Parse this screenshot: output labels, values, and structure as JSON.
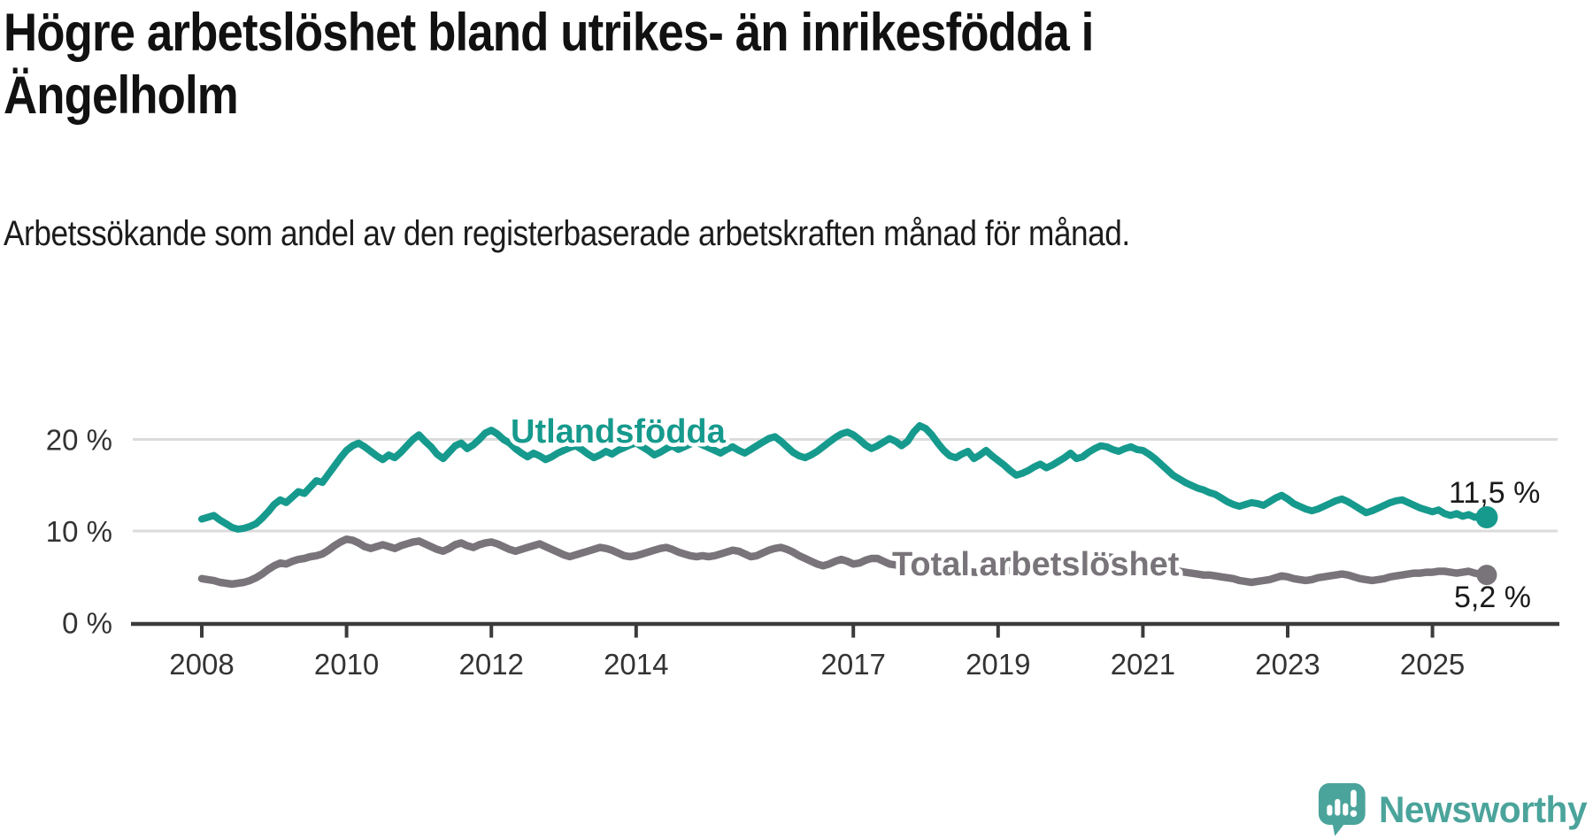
{
  "title": "Högre arbetslöshet bland utrikes- än inrikesfödda i Ängelholm",
  "subtitle": "Arbetssökande som andel av den registerbaserade arbetskraften månad för månad.",
  "branding": {
    "logo_text": "Newsworthy",
    "logo_color": "#4ba49b"
  },
  "colors": {
    "accent_teal": "#169a8d",
    "series_gray": "#787479",
    "axis": "#3b3b3b",
    "tick_text": "#333333",
    "gridline": "#dbdbdb",
    "annotation_text": "#1a1a1a"
  },
  "chart_data": {
    "type": "line",
    "unit": "%",
    "x_start": "2008-01",
    "x_end": "2025-10",
    "points_per_year": 12,
    "grid": "horizontal",
    "legend_position": "inline-labels",
    "ylim": [
      0,
      23
    ],
    "x_ticks": [
      2008,
      2010,
      2012,
      2014,
      2017,
      2019,
      2021,
      2023,
      2025
    ],
    "y_ticks": [
      {
        "value": 0,
        "label": "0 %"
      },
      {
        "value": 10,
        "label": "10 %"
      },
      {
        "value": 20,
        "label": "20 %"
      }
    ],
    "series": [
      {
        "name": "Total arbetslöshet",
        "color": "#787479",
        "end_label": "5,2 %",
        "end_value": 5.2,
        "values": [
          4.8,
          4.7,
          4.6,
          4.4,
          4.3,
          4.2,
          4.3,
          4.4,
          4.6,
          4.9,
          5.3,
          5.8,
          6.2,
          6.5,
          6.4,
          6.7,
          6.9,
          7.0,
          7.2,
          7.3,
          7.5,
          7.9,
          8.4,
          8.8,
          9.1,
          9.0,
          8.7,
          8.3,
          8.1,
          8.3,
          8.5,
          8.3,
          8.1,
          8.4,
          8.6,
          8.8,
          8.9,
          8.6,
          8.3,
          8.0,
          7.8,
          8.1,
          8.5,
          8.7,
          8.4,
          8.2,
          8.5,
          8.7,
          8.8,
          8.6,
          8.3,
          8.0,
          7.8,
          8.0,
          8.2,
          8.4,
          8.6,
          8.3,
          8.0,
          7.7,
          7.4,
          7.2,
          7.4,
          7.6,
          7.8,
          8.0,
          8.2,
          8.1,
          7.9,
          7.6,
          7.3,
          7.2,
          7.3,
          7.5,
          7.7,
          7.9,
          8.1,
          8.2,
          8.0,
          7.7,
          7.5,
          7.3,
          7.2,
          7.3,
          7.2,
          7.3,
          7.5,
          7.7,
          7.9,
          7.8,
          7.5,
          7.2,
          7.3,
          7.6,
          7.9,
          8.1,
          8.2,
          8.0,
          7.7,
          7.3,
          7.0,
          6.7,
          6.4,
          6.2,
          6.4,
          6.7,
          6.9,
          6.7,
          6.4,
          6.5,
          6.8,
          7.0,
          7.0,
          6.7,
          6.4,
          6.3,
          6.2,
          6.2,
          6.1,
          6.1,
          6.0,
          5.9,
          5.8,
          5.8,
          5.7,
          5.7,
          5.6,
          5.6,
          5.5,
          5.5,
          5.5,
          5.6,
          5.6,
          5.6,
          5.7,
          5.7,
          5.8,
          5.8,
          5.9,
          5.9,
          6.0,
          6.0,
          6.1,
          6.2,
          6.3,
          6.4,
          6.6,
          6.9,
          7.1,
          7.2,
          7.2,
          7.1,
          7.0,
          6.9,
          6.8,
          6.7,
          6.6,
          6.4,
          6.2,
          6.0,
          5.9,
          5.7,
          5.6,
          5.5,
          5.4,
          5.3,
          5.2,
          5.2,
          5.1,
          5.0,
          4.9,
          4.8,
          4.6,
          4.5,
          4.4,
          4.5,
          4.6,
          4.7,
          4.9,
          5.1,
          5.0,
          4.8,
          4.7,
          4.6,
          4.7,
          4.9,
          5.0,
          5.1,
          5.2,
          5.3,
          5.2,
          5.0,
          4.8,
          4.7,
          4.6,
          4.7,
          4.8,
          5.0,
          5.1,
          5.2,
          5.3,
          5.4,
          5.4,
          5.5,
          5.5,
          5.6,
          5.6,
          5.5,
          5.4,
          5.5,
          5.6,
          5.4,
          5.3,
          5.2
        ]
      },
      {
        "name": "Utlandsfödda",
        "color": "#169a8d",
        "end_label": "11,5 %",
        "end_value": 11.5,
        "values": [
          11.3,
          11.5,
          11.7,
          11.2,
          10.8,
          10.4,
          10.2,
          10.3,
          10.5,
          10.8,
          11.4,
          12.1,
          12.9,
          13.4,
          13.1,
          13.7,
          14.3,
          14.1,
          14.8,
          15.5,
          15.3,
          16.2,
          17.1,
          18.0,
          18.8,
          19.3,
          19.6,
          19.2,
          18.7,
          18.2,
          17.8,
          18.3,
          18.0,
          18.6,
          19.3,
          20.0,
          20.5,
          19.8,
          19.2,
          18.4,
          17.9,
          18.6,
          19.3,
          19.6,
          19.0,
          19.4,
          20.0,
          20.7,
          21.0,
          20.6,
          20.0,
          19.6,
          19.0,
          18.5,
          18.1,
          18.5,
          18.2,
          17.8,
          18.1,
          18.5,
          18.8,
          19.1,
          19.3,
          18.9,
          18.4,
          18.0,
          18.3,
          18.7,
          18.4,
          18.8,
          19.1,
          19.4,
          19.6,
          19.2,
          18.8,
          18.3,
          18.6,
          19.0,
          19.3,
          18.9,
          19.2,
          19.5,
          19.7,
          19.4,
          19.1,
          18.8,
          18.5,
          18.9,
          19.2,
          18.8,
          18.5,
          18.9,
          19.3,
          19.7,
          20.1,
          20.3,
          19.8,
          19.2,
          18.6,
          18.2,
          18.0,
          18.3,
          18.7,
          19.2,
          19.7,
          20.2,
          20.6,
          20.8,
          20.5,
          20.0,
          19.4,
          19.0,
          19.3,
          19.7,
          20.1,
          19.8,
          19.3,
          19.8,
          20.8,
          21.5,
          21.2,
          20.5,
          19.6,
          18.8,
          18.2,
          18.0,
          18.4,
          18.7,
          17.9,
          18.3,
          18.8,
          18.2,
          17.7,
          17.2,
          16.6,
          16.1,
          16.3,
          16.6,
          17.0,
          17.3,
          16.9,
          17.2,
          17.6,
          18.0,
          18.5,
          17.9,
          18.1,
          18.6,
          19.0,
          19.3,
          19.2,
          18.9,
          18.7,
          19.0,
          19.2,
          18.9,
          18.8,
          18.4,
          17.9,
          17.3,
          16.7,
          16.1,
          15.7,
          15.3,
          15.0,
          14.7,
          14.5,
          14.2,
          14.0,
          13.6,
          13.2,
          12.9,
          12.7,
          12.9,
          13.1,
          13.0,
          12.8,
          13.2,
          13.6,
          13.9,
          13.5,
          13.0,
          12.7,
          12.4,
          12.2,
          12.4,
          12.7,
          13.0,
          13.3,
          13.5,
          13.2,
          12.8,
          12.4,
          12.0,
          12.2,
          12.5,
          12.8,
          13.1,
          13.3,
          13.4,
          13.1,
          12.8,
          12.5,
          12.3,
          12.1,
          12.3,
          11.9,
          11.7,
          11.9,
          11.6,
          11.8,
          11.5,
          11.6,
          11.5
        ]
      }
    ]
  }
}
